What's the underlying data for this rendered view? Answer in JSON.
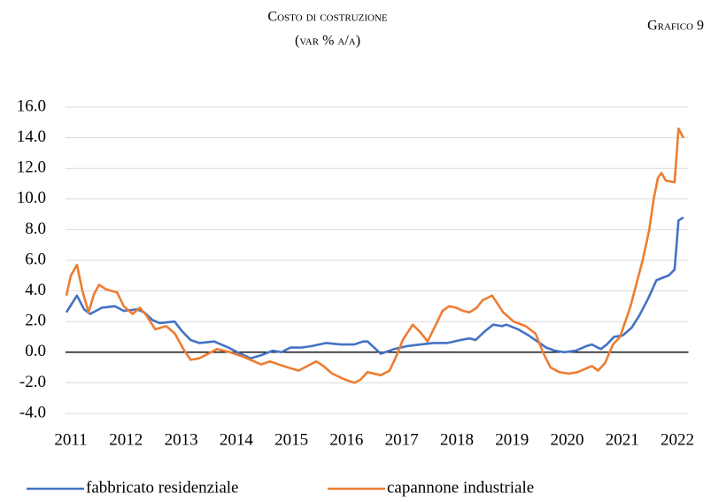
{
  "chart_data": {
    "type": "line",
    "title": "Costo di costruzione",
    "subtitle": "(var %  a/a)",
    "annotation": "Grafico 9",
    "xlim": [
      2010.9,
      2022.2
    ],
    "xticks": [
      2011,
      2012,
      2013,
      2014,
      2015,
      2016,
      2017,
      2018,
      2019,
      2020,
      2021,
      2022
    ],
    "ylim": [
      -4,
      16
    ],
    "yticks": [
      {
        "value": -4,
        "label": "-4.0"
      },
      {
        "value": -2,
        "label": "-2.0"
      },
      {
        "value": 0,
        "label": "0.0"
      },
      {
        "value": 2,
        "label": "2.0"
      },
      {
        "value": 4,
        "label": "4.0"
      },
      {
        "value": 6,
        "label": "6.0"
      },
      {
        "value": 8,
        "label": "8.0"
      },
      {
        "value": 10,
        "label": "10.0"
      },
      {
        "value": 12,
        "label": "12.0"
      },
      {
        "value": 14,
        "label": "14.0"
      },
      {
        "value": 16,
        "label": "16.0"
      }
    ],
    "grid": true,
    "legend": "bottom",
    "series": [
      {
        "name": "fabbricato residenziale",
        "color": "#4472c4",
        "x": [
          2010.92,
          2011.11,
          2011.24,
          2011.35,
          2011.56,
          2011.8,
          2011.96,
          2012.2,
          2012.33,
          2012.48,
          2012.61,
          2012.88,
          2013.01,
          2013.17,
          2013.33,
          2013.6,
          2013.86,
          2014.02,
          2014.26,
          2014.45,
          2014.66,
          2014.82,
          2014.98,
          2015.18,
          2015.37,
          2015.63,
          2015.9,
          2016.14,
          2016.3,
          2016.38,
          2016.62,
          2016.86,
          2017.1,
          2017.34,
          2017.58,
          2017.83,
          2018.07,
          2018.23,
          2018.34,
          2018.52,
          2018.66,
          2018.82,
          2018.9,
          2019.11,
          2019.3,
          2019.46,
          2019.62,
          2019.78,
          2019.95,
          2020.16,
          2020.35,
          2020.45,
          2020.61,
          2020.72,
          2020.85,
          2021.01,
          2021.17,
          2021.31,
          2021.47,
          2021.62,
          2021.76,
          2021.84,
          2021.95,
          2022.02,
          2022.11
        ],
        "values": [
          2.6,
          3.7,
          2.8,
          2.5,
          2.9,
          3.0,
          2.7,
          2.8,
          2.6,
          2.1,
          1.9,
          2.0,
          1.4,
          0.8,
          0.6,
          0.7,
          0.3,
          0.0,
          -0.4,
          -0.2,
          0.1,
          0.0,
          0.3,
          0.3,
          0.4,
          0.6,
          0.5,
          0.5,
          0.7,
          0.7,
          -0.1,
          0.2,
          0.4,
          0.5,
          0.6,
          0.6,
          0.8,
          0.9,
          0.8,
          1.4,
          1.8,
          1.7,
          1.8,
          1.5,
          1.1,
          0.7,
          0.3,
          0.1,
          0.0,
          0.1,
          0.4,
          0.5,
          0.2,
          0.5,
          1.0,
          1.1,
          1.6,
          2.4,
          3.5,
          4.7,
          4.9,
          5.0,
          5.4,
          8.6,
          8.8
        ]
      },
      {
        "name": "capannone industriale",
        "color": "#ed7d31",
        "x": [
          2010.92,
          2011.0,
          2011.11,
          2011.21,
          2011.32,
          2011.42,
          2011.51,
          2011.64,
          2011.84,
          2011.96,
          2012.12,
          2012.25,
          2012.37,
          2012.53,
          2012.73,
          2012.89,
          2013.04,
          2013.17,
          2013.33,
          2013.65,
          2013.89,
          2014.13,
          2014.45,
          2014.61,
          2014.85,
          2015.13,
          2015.45,
          2015.58,
          2015.74,
          2015.98,
          2016.14,
          2016.25,
          2016.38,
          2016.62,
          2016.78,
          2016.91,
          2017.02,
          2017.2,
          2017.34,
          2017.47,
          2017.62,
          2017.74,
          2017.86,
          2017.99,
          2018.11,
          2018.23,
          2018.36,
          2018.47,
          2018.64,
          2018.84,
          2019.03,
          2019.25,
          2019.43,
          2019.56,
          2019.7,
          2019.86,
          2020.03,
          2020.19,
          2020.45,
          2020.56,
          2020.69,
          2020.83,
          2020.96,
          2021.15,
          2021.37,
          2021.49,
          2021.57,
          2021.65,
          2021.71,
          2021.79,
          2021.95,
          2022.02,
          2022.11
        ],
        "values": [
          3.7,
          5.0,
          5.7,
          4.0,
          2.6,
          3.8,
          4.4,
          4.1,
          3.9,
          3.0,
          2.5,
          2.9,
          2.4,
          1.5,
          1.7,
          1.2,
          0.2,
          -0.5,
          -0.4,
          0.2,
          0.0,
          -0.3,
          -0.8,
          -0.6,
          -0.9,
          -1.2,
          -0.6,
          -0.9,
          -1.4,
          -1.8,
          -2.0,
          -1.8,
          -1.3,
          -1.5,
          -1.2,
          -0.2,
          0.8,
          1.8,
          1.3,
          0.7,
          1.8,
          2.7,
          3.0,
          2.9,
          2.7,
          2.6,
          2.9,
          3.4,
          3.7,
          2.6,
          2.0,
          1.7,
          1.2,
          0.0,
          -1.0,
          -1.3,
          -1.4,
          -1.3,
          -0.9,
          -1.2,
          -0.7,
          0.5,
          1.0,
          3.0,
          6.0,
          8.0,
          10.0,
          11.4,
          11.7,
          11.2,
          11.1,
          14.6,
          14.0
        ]
      }
    ]
  }
}
